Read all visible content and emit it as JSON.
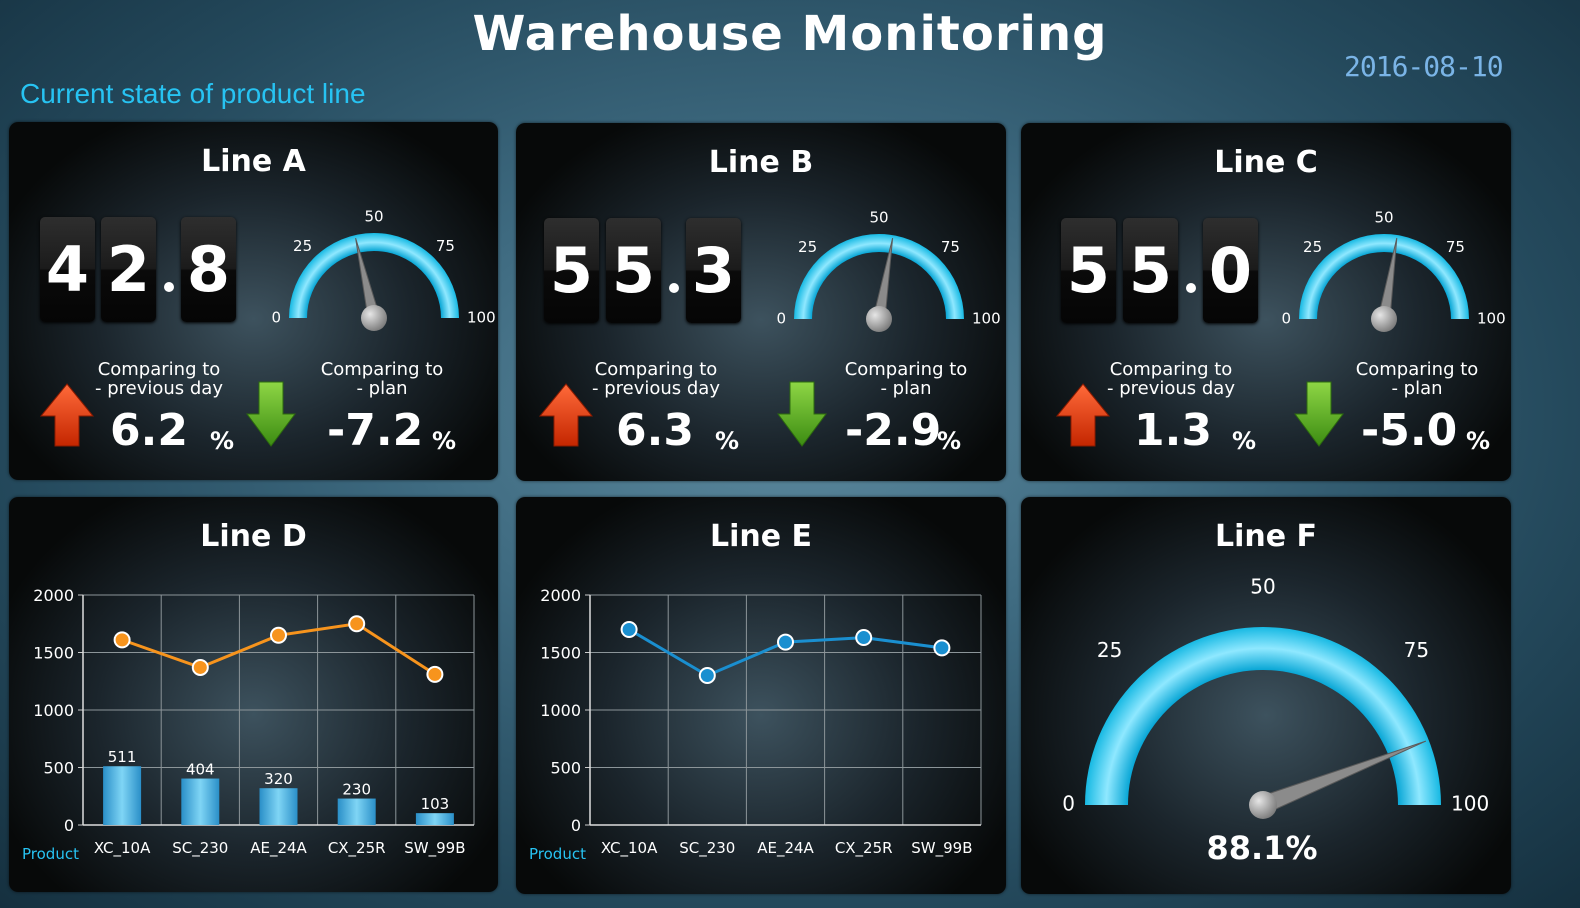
{
  "header": {
    "title": "Warehouse Monitoring",
    "subtitle": "Current state of product line",
    "date": "2016-08-10"
  },
  "lines": [
    {
      "title": "Line A",
      "digits": [
        "4",
        "2",
        "8"
      ],
      "gauge_value": 42.8,
      "prev_label_1": "Comparing to",
      "prev_label_2": "- previous day",
      "prev_value": "6.2",
      "plan_label_1": "Comparing to",
      "plan_label_2": "- plan",
      "plan_value": "-7.2",
      "unit": "%"
    },
    {
      "title": "Line B",
      "digits": [
        "5",
        "5",
        "3"
      ],
      "gauge_value": 55.3,
      "prev_label_1": "Comparing to",
      "prev_label_2": "- previous day",
      "prev_value": "6.3",
      "plan_label_1": "Comparing to",
      "plan_label_2": "- plan",
      "plan_value": "-2.9",
      "unit": "%"
    },
    {
      "title": "Line C",
      "digits": [
        "5",
        "5",
        "0"
      ],
      "gauge_value": 55.0,
      "prev_label_1": "Comparing to",
      "prev_label_2": "- previous day",
      "prev_value": "1.3",
      "plan_label_1": "Comparing to",
      "plan_label_2": "- plan",
      "plan_value": "-5.0",
      "unit": "%"
    }
  ],
  "small_gauge_ticks": [
    "0",
    "25",
    "50",
    "75",
    "100"
  ],
  "line_d": {
    "title": "Line D"
  },
  "line_e": {
    "title": "Line E"
  },
  "line_f": {
    "title": "Line F",
    "value_label": "88.1%",
    "ticks": [
      "0",
      "25",
      "50",
      "75",
      "100"
    ]
  },
  "colors": {
    "orange": "#f7941d",
    "blue": "#1a8fd0",
    "gauge": "#1ec3ea",
    "accent": "#27c3f2"
  },
  "chart_data": [
    {
      "type": "bar+line",
      "title": "Line D",
      "categories": [
        "XC_10A",
        "SC_230",
        "AE_24A",
        "CX_25R",
        "SW_99B"
      ],
      "series": [
        {
          "name": "bars",
          "type": "bar",
          "values": [
            511,
            404,
            320,
            230,
            103
          ]
        },
        {
          "name": "line",
          "type": "line",
          "values": [
            1610,
            1370,
            1650,
            1750,
            1310
          ]
        }
      ],
      "xlabel": "Product",
      "ylabel": "",
      "yticks": [
        "0",
        "500",
        "1000",
        "1500",
        "2000"
      ],
      "ylim": [
        0,
        2000
      ]
    },
    {
      "type": "line",
      "title": "Line E",
      "categories": [
        "XC_10A",
        "SC_230",
        "AE_24A",
        "CX_25R",
        "SW_99B"
      ],
      "series": [
        {
          "name": "line",
          "values": [
            1700,
            1300,
            1590,
            1630,
            1540
          ]
        }
      ],
      "xlabel": "Product",
      "ylabel": "",
      "yticks": [
        "0",
        "500",
        "1000",
        "1500",
        "2000"
      ],
      "ylim": [
        0,
        2000
      ]
    },
    {
      "type": "gauge",
      "title": "Line F",
      "value": 88.1,
      "range": [
        0,
        100
      ]
    }
  ]
}
